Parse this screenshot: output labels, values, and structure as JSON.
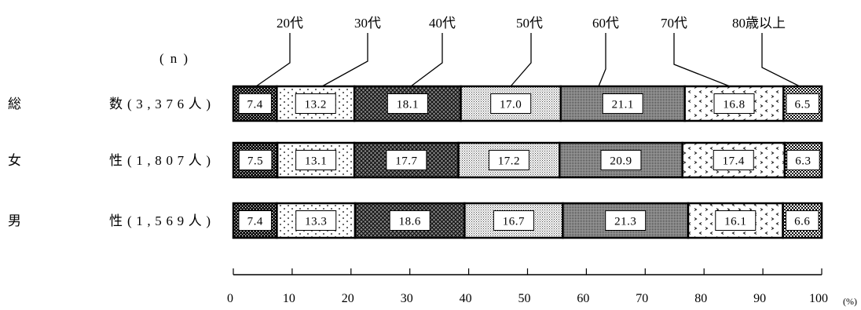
{
  "chart_data": {
    "type": "bar",
    "orientation": "horizontal",
    "stacked": true,
    "n_label": "(n)",
    "categories": [
      "総数",
      "女性",
      "男性"
    ],
    "category_n": [
      "(3,376人)",
      "(1,807人)",
      "(1,569人)"
    ],
    "series": [
      {
        "name": "20代",
        "pattern": "dark-dots",
        "values": [
          7.4,
          7.5,
          7.4
        ]
      },
      {
        "name": "30代",
        "pattern": "sparse-dots",
        "values": [
          13.2,
          13.1,
          13.3
        ]
      },
      {
        "name": "40代",
        "pattern": "crosshatch",
        "values": [
          18.1,
          17.7,
          18.6
        ]
      },
      {
        "name": "50代",
        "pattern": "light-dots",
        "values": [
          17.0,
          17.2,
          16.7
        ]
      },
      {
        "name": "60代",
        "pattern": "medium-dots",
        "values": [
          21.1,
          20.9,
          21.3
        ]
      },
      {
        "name": "70代",
        "pattern": "chevrons",
        "values": [
          16.8,
          17.4,
          16.1
        ]
      },
      {
        "name": "80歳以上",
        "pattern": "checker",
        "values": [
          6.5,
          6.3,
          6.6
        ]
      }
    ],
    "xlim": [
      0,
      100
    ],
    "x_ticks": [
      0,
      10,
      20,
      30,
      40,
      50,
      60,
      70,
      80,
      90,
      100
    ],
    "x_unit": "(%)",
    "legend": "top",
    "grid": false,
    "colors": {
      "stroke": "#000000",
      "label_box": "#ffffff"
    }
  }
}
